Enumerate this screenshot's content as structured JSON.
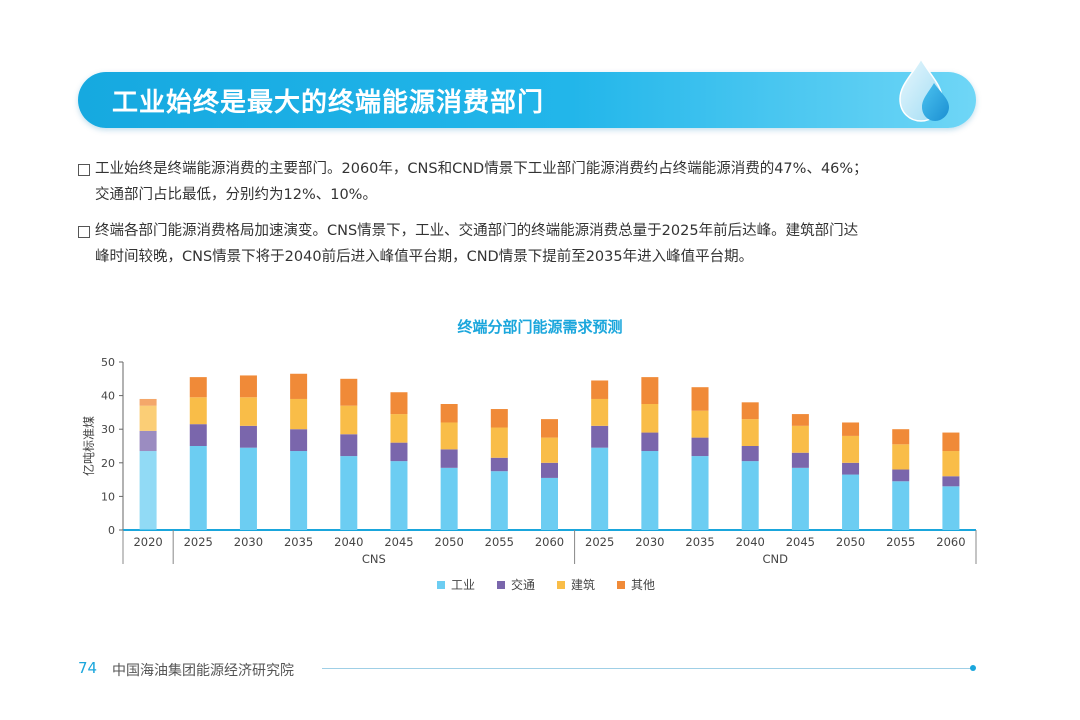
{
  "banner": {
    "title": "工业始终是最大的终端能源消费部门"
  },
  "bullets": [
    {
      "lines": [
        "工业始终是终端能源消费的主要部门。2060年，CNS和CND情景下工业部门能源消费约占终端能源消费的47%、46%；",
        "交通部门占比最低，分别约为12%、10%。"
      ]
    },
    {
      "lines": [
        "终端各部门能源消费格局加速演变。CNS情景下，工业、交通部门的终端能源消费总量于2025年前后达峰。建筑部门达",
        "峰时间较晚，CNS情景下将于2040前后进入峰值平台期，CND情景下提前至2035年进入峰值平台期。"
      ]
    }
  ],
  "chart_data": {
    "type": "bar",
    "stacked": true,
    "title": "终端分部门能源需求预测",
    "ylabel": "亿吨标准煤",
    "ylim": [
      0,
      50
    ],
    "yticks": [
      0,
      10,
      20,
      30,
      40,
      50
    ],
    "groups": [
      {
        "name": "",
        "categories": [
          "2020"
        ]
      },
      {
        "name": "CNS",
        "categories": [
          "2025",
          "2030",
          "2035",
          "2040",
          "2045",
          "2050",
          "2055",
          "2060"
        ]
      },
      {
        "name": "CND",
        "categories": [
          "2025",
          "2030",
          "2035",
          "2040",
          "2045",
          "2050",
          "2055",
          "2060"
        ]
      }
    ],
    "series": [
      {
        "name": "工业",
        "color": "#6ccdf2",
        "values": [
          23.5,
          25,
          24.5,
          23.5,
          22,
          20.5,
          18.5,
          17.5,
          15.5,
          24.5,
          23.5,
          22,
          20.5,
          18.5,
          16.5,
          14.5,
          13
        ]
      },
      {
        "name": "交通",
        "color": "#7a66ac",
        "values": [
          6,
          6.5,
          6.5,
          6.5,
          6.5,
          5.5,
          5.5,
          4,
          4.5,
          6.5,
          5.5,
          5.5,
          4.5,
          4.5,
          3.5,
          3.5,
          3
        ]
      },
      {
        "name": "建筑",
        "color": "#f9bd48",
        "values": [
          7.5,
          8,
          8.5,
          9,
          8.5,
          8.5,
          8,
          9,
          7.5,
          8,
          8.5,
          8,
          8,
          8,
          8,
          7.5,
          7.5
        ]
      },
      {
        "name": "其他",
        "color": "#f08a38",
        "values": [
          2,
          6,
          6.5,
          7.5,
          8,
          6.5,
          5.5,
          5.5,
          5.5,
          5.5,
          8,
          7,
          5,
          3.5,
          4,
          4.5,
          5.5
        ]
      }
    ],
    "legend_position": "bottom"
  },
  "footer": {
    "page": "74",
    "org": "中国海油集团能源经济研究院"
  }
}
